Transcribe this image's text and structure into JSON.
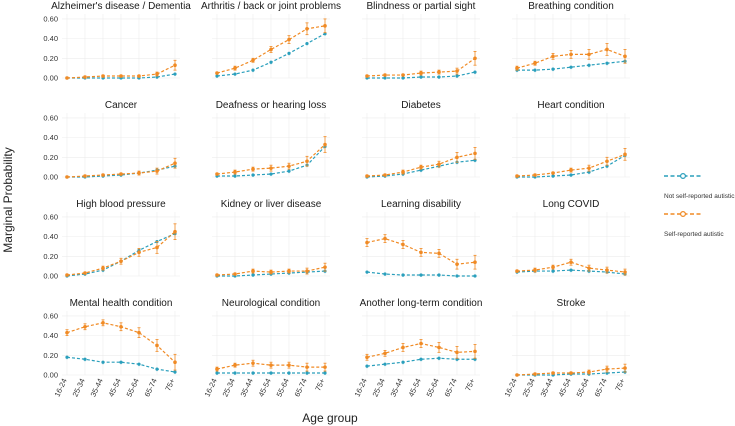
{
  "chart_data": {
    "type": "line",
    "ylabel": "Marginal Probability",
    "xlabel": "Age group",
    "categories": [
      "16-24",
      "25-34",
      "35-44",
      "45-54",
      "55-64",
      "65-74",
      "75+"
    ],
    "yticks": [
      0.0,
      0.2,
      0.4,
      0.6
    ],
    "ytick_labels": [
      "0.00",
      "0.20",
      "0.40",
      "0.60"
    ],
    "ylim": [
      0,
      0.65
    ],
    "legend": [
      {
        "name": "Not self-reported autistic",
        "color": "#2a9fbc"
      },
      {
        "name": "Self-reported autistic",
        "color": "#f08a24"
      }
    ],
    "panels": [
      {
        "title": "Alzheimer's disease / Dementia",
        "not_autistic": [
          0.0,
          0.0,
          0.0,
          0.0,
          0.0,
          0.01,
          0.04
        ],
        "autistic": [
          0.0,
          0.01,
          0.02,
          0.02,
          0.02,
          0.04,
          0.13
        ],
        "autistic_err": [
          0.01,
          0.01,
          0.01,
          0.01,
          0.01,
          0.02,
          0.05
        ]
      },
      {
        "title": "Arthritis / back or joint problems",
        "not_autistic": [
          0.02,
          0.04,
          0.08,
          0.16,
          0.25,
          0.35,
          0.45
        ],
        "autistic": [
          0.05,
          0.1,
          0.18,
          0.29,
          0.39,
          0.5,
          0.53
        ],
        "autistic_err": [
          0.01,
          0.02,
          0.02,
          0.03,
          0.04,
          0.06,
          0.07
        ]
      },
      {
        "title": "Blindness or partial sight",
        "not_autistic": [
          0.0,
          0.0,
          0.0,
          0.01,
          0.01,
          0.02,
          0.06
        ],
        "autistic": [
          0.02,
          0.03,
          0.03,
          0.05,
          0.06,
          0.07,
          0.2
        ],
        "autistic_err": [
          0.01,
          0.01,
          0.01,
          0.02,
          0.02,
          0.03,
          0.07
        ]
      },
      {
        "title": "Breathing condition",
        "not_autistic": [
          0.08,
          0.08,
          0.09,
          0.11,
          0.13,
          0.15,
          0.17
        ],
        "autistic": [
          0.1,
          0.15,
          0.22,
          0.24,
          0.24,
          0.29,
          0.22
        ],
        "autistic_err": [
          0.02,
          0.02,
          0.03,
          0.04,
          0.05,
          0.06,
          0.07
        ]
      },
      {
        "title": "Cancer",
        "not_autistic": [
          0.0,
          0.0,
          0.01,
          0.02,
          0.04,
          0.07,
          0.11
        ],
        "autistic": [
          0.0,
          0.01,
          0.02,
          0.03,
          0.04,
          0.06,
          0.14
        ],
        "autistic_err": [
          0.01,
          0.01,
          0.01,
          0.01,
          0.02,
          0.03,
          0.05
        ]
      },
      {
        "title": "Deafness or hearing loss",
        "not_autistic": [
          0.01,
          0.01,
          0.02,
          0.03,
          0.06,
          0.12,
          0.31
        ],
        "autistic": [
          0.03,
          0.05,
          0.08,
          0.09,
          0.11,
          0.16,
          0.33
        ],
        "autistic_err": [
          0.01,
          0.02,
          0.02,
          0.03,
          0.03,
          0.05,
          0.08
        ]
      },
      {
        "title": "Diabetes",
        "not_autistic": [
          0.0,
          0.01,
          0.03,
          0.07,
          0.11,
          0.15,
          0.17
        ],
        "autistic": [
          0.01,
          0.02,
          0.05,
          0.1,
          0.13,
          0.2,
          0.24
        ],
        "autistic_err": [
          0.01,
          0.01,
          0.02,
          0.02,
          0.03,
          0.05,
          0.06
        ]
      },
      {
        "title": "Heart condition",
        "not_autistic": [
          0.0,
          0.0,
          0.01,
          0.02,
          0.05,
          0.11,
          0.22
        ],
        "autistic": [
          0.01,
          0.02,
          0.04,
          0.07,
          0.09,
          0.16,
          0.23
        ],
        "autistic_err": [
          0.01,
          0.01,
          0.01,
          0.02,
          0.03,
          0.04,
          0.06
        ]
      },
      {
        "title": "High blood pressure",
        "not_autistic": [
          0.0,
          0.02,
          0.06,
          0.15,
          0.26,
          0.35,
          0.43
        ],
        "autistic": [
          0.01,
          0.03,
          0.08,
          0.15,
          0.24,
          0.29,
          0.45
        ],
        "autistic_err": [
          0.01,
          0.01,
          0.02,
          0.03,
          0.04,
          0.06,
          0.08
        ]
      },
      {
        "title": "Kidney or liver disease",
        "not_autistic": [
          0.0,
          0.0,
          0.01,
          0.02,
          0.03,
          0.04,
          0.05
        ],
        "autistic": [
          0.01,
          0.02,
          0.05,
          0.04,
          0.05,
          0.05,
          0.09
        ],
        "autistic_err": [
          0.01,
          0.01,
          0.02,
          0.02,
          0.02,
          0.03,
          0.04
        ]
      },
      {
        "title": "Learning disability",
        "not_autistic": [
          0.04,
          0.02,
          0.01,
          0.01,
          0.01,
          0.0,
          0.0
        ],
        "autistic": [
          0.34,
          0.38,
          0.32,
          0.24,
          0.23,
          0.12,
          0.14
        ],
        "autistic_err": [
          0.04,
          0.04,
          0.04,
          0.04,
          0.04,
          0.05,
          0.07
        ]
      },
      {
        "title": "Long COVID",
        "not_autistic": [
          0.04,
          0.05,
          0.05,
          0.06,
          0.05,
          0.04,
          0.02
        ],
        "autistic": [
          0.05,
          0.06,
          0.09,
          0.14,
          0.08,
          0.06,
          0.04
        ],
        "autistic_err": [
          0.01,
          0.02,
          0.02,
          0.03,
          0.03,
          0.03,
          0.03
        ]
      },
      {
        "title": "Mental health condition",
        "not_autistic": [
          0.18,
          0.16,
          0.13,
          0.13,
          0.11,
          0.06,
          0.03
        ],
        "autistic": [
          0.43,
          0.49,
          0.53,
          0.49,
          0.43,
          0.3,
          0.13
        ],
        "autistic_err": [
          0.03,
          0.03,
          0.03,
          0.04,
          0.05,
          0.06,
          0.08
        ]
      },
      {
        "title": "Neurological condition",
        "not_autistic": [
          0.02,
          0.02,
          0.02,
          0.02,
          0.02,
          0.02,
          0.02
        ],
        "autistic": [
          0.06,
          0.1,
          0.12,
          0.1,
          0.1,
          0.08,
          0.08
        ],
        "autistic_err": [
          0.02,
          0.02,
          0.03,
          0.03,
          0.03,
          0.04,
          0.04
        ]
      },
      {
        "title": "Another long-term condition",
        "not_autistic": [
          0.09,
          0.11,
          0.13,
          0.16,
          0.17,
          0.16,
          0.16
        ],
        "autistic": [
          0.18,
          0.22,
          0.28,
          0.32,
          0.28,
          0.23,
          0.24
        ],
        "autistic_err": [
          0.03,
          0.03,
          0.04,
          0.04,
          0.05,
          0.06,
          0.07
        ]
      },
      {
        "title": "Stroke",
        "not_autistic": [
          0.0,
          0.0,
          0.0,
          0.01,
          0.01,
          0.02,
          0.03
        ],
        "autistic": [
          0.0,
          0.01,
          0.02,
          0.02,
          0.03,
          0.06,
          0.07
        ],
        "autistic_err": [
          0.01,
          0.01,
          0.01,
          0.01,
          0.02,
          0.03,
          0.04
        ]
      }
    ]
  }
}
